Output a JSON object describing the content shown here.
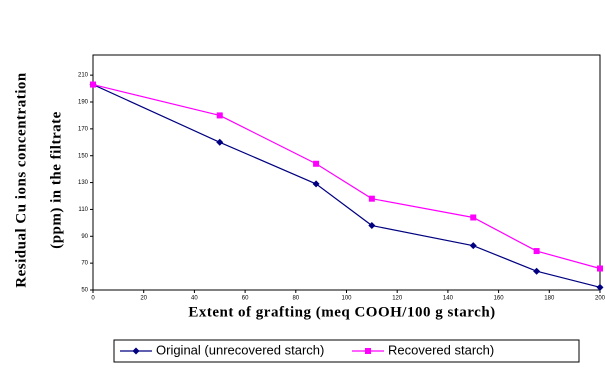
{
  "chart_data": {
    "type": "line",
    "y_label": [
      "Residual Cu ions concentration",
      "(ppm) in the filtrate"
    ],
    "x_label": "Extent of grafting (meq COOH/100 g starch)",
    "xlim": [
      0,
      200
    ],
    "xticks": [
      0,
      20,
      40,
      60,
      80,
      100,
      120,
      140,
      160,
      180,
      200
    ],
    "ylim": [
      50,
      225
    ],
    "yticks": [
      50,
      70,
      90,
      110,
      130,
      150,
      170,
      190,
      210
    ],
    "x": [
      0,
      50,
      88,
      110,
      150,
      175,
      200
    ],
    "series": [
      {
        "name": "Original (unrecovered starch)",
        "color": "#000080",
        "marker": "diamond",
        "values": [
          203,
          160,
          129,
          98,
          83,
          64,
          52
        ]
      },
      {
        "name": "Recovered starch)",
        "color": "#ff00ff",
        "marker": "square",
        "values": [
          203,
          180,
          144,
          118,
          104,
          79,
          66
        ]
      }
    ]
  }
}
